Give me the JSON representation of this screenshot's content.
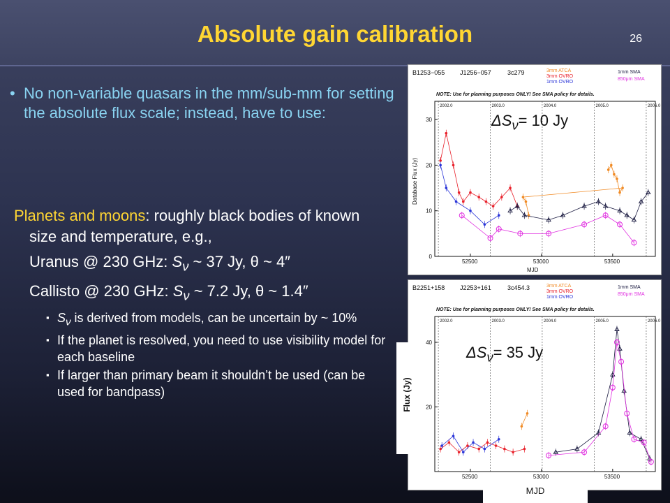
{
  "slide": {
    "title": "Absolute gain calibration",
    "number": "26"
  },
  "bullet": {
    "text": "No non-variable quasars in the mm/sub-mm for setting the absolute flux scale; instead, have to use:"
  },
  "planets": {
    "lead_highlight": "Planets and moons",
    "lead_rest": ": roughly black bodies of known size and temperature, e.g.,",
    "uranus_prefix": "Uranus @ 230 GHz: ",
    "uranus_suffix": " ~ 37 Jy, θ ~ 4″",
    "callisto_prefix": "Callisto @ 230 GHz: ",
    "callisto_suffix": " ~ 7.2 Jy, θ ~ 1.4″",
    "sub_items": [
      " is derived from models, can be uncertain by ~ 10%",
      "If the planet is resolved, you need to use visibility model for each baseline",
      "If larger than primary beam it shouldn’t be used (can be used for bandpass)"
    ]
  },
  "symbols": {
    "S": "S",
    "nu": "ν",
    "delta": "ΔS",
    "bullet": "•",
    "square": "▪"
  },
  "plot_top": {
    "sources": [
      "B1253−055",
      "J1256−057",
      "3c279"
    ],
    "legend_left": [
      "3mm ATCA",
      "3mm OVRO",
      "1mm OVRO"
    ],
    "legend_right": [
      "1mm SMA",
      "850μm SMA"
    ],
    "note": "NOTE: Use for planning purposes ONLY! See SMA policy for details.",
    "ylabel": "Database Flux (Jy)",
    "xlabel": "MJD",
    "years": [
      "2002.0",
      "2003.0",
      "2004.0",
      "2005.0",
      "2006.0"
    ],
    "yticks": [
      "0",
      "10",
      "20",
      "30"
    ],
    "xticks": [
      "52500",
      "53000",
      "53500"
    ],
    "delta_value": "= 10 Jy"
  },
  "plot_bottom": {
    "sources": [
      "B2251+158",
      "J2253+161",
      "3c454.3"
    ],
    "legend_left": [
      "3mm ATCA",
      "3mm OVRO",
      "1mm OVRO"
    ],
    "legend_right": [
      "1mm SMA",
      "850μm SMA"
    ],
    "note": "NOTE: Use for planning purposes ONLY! See SMA policy for details.",
    "ylabel": "Flux (Jy)",
    "xlabel": "MJD",
    "years": [
      "2002.0",
      "2003.0",
      "2004.0",
      "2005.0",
      "2006.0"
    ],
    "yticks": [
      "20",
      "40"
    ],
    "xticks": [
      "52500",
      "53000",
      "53500"
    ],
    "delta_value": "= 35 Jy"
  },
  "colors": {
    "title": "#ffd633",
    "bullet_text": "#8ad4f2",
    "atca": "#f08a24",
    "ovro3": "#e8202a",
    "ovro1": "#2a35d8",
    "sma1": "#1a1a40",
    "sma850": "#e030e0"
  },
  "chart_data": [
    {
      "type": "scatter",
      "title": "B1253−055 J1256−057 3c279",
      "xlabel": "MJD",
      "ylabel": "Database Flux (Jy)",
      "xlim": [
        52250,
        53800
      ],
      "ylim": [
        0,
        34
      ],
      "series": [
        {
          "name": "3mm ATCA",
          "x": [
            53470,
            53490,
            53510,
            53530,
            53550,
            53570,
            52870,
            52890,
            52910
          ],
          "y": [
            19,
            20,
            18,
            17,
            14,
            15,
            13,
            12,
            9
          ]
        },
        {
          "name": "3mm OVRO",
          "x": [
            52290,
            52330,
            52380,
            52420,
            52450,
            52500,
            52560,
            52610,
            52660,
            52720,
            52780,
            52830
          ],
          "y": [
            21,
            27,
            20,
            14,
            12,
            14,
            13,
            12,
            11,
            13,
            15,
            11
          ]
        },
        {
          "name": "1mm OVRO",
          "x": [
            52290,
            52330,
            52400,
            52500,
            52600,
            52700
          ],
          "y": [
            20,
            15,
            12,
            10,
            7,
            9
          ]
        },
        {
          "name": "1mm SMA",
          "x": [
            52780,
            52830,
            52880,
            53050,
            53150,
            53300,
            53400,
            53450,
            53550,
            53600,
            53650,
            53700,
            53750
          ],
          "y": [
            10,
            11,
            9,
            8,
            9,
            11,
            12,
            11,
            10,
            9,
            8,
            12,
            14
          ]
        },
        {
          "name": "850μm SMA",
          "x": [
            52440,
            52640,
            52700,
            52850,
            53050,
            53300,
            53450,
            53550,
            53650
          ],
          "y": [
            9,
            4,
            6,
            5,
            5,
            7,
            9,
            7,
            3
          ]
        }
      ]
    },
    {
      "type": "scatter",
      "title": "B2251+158 J2253+161 3c454.3",
      "xlabel": "MJD",
      "ylabel": "Flux (Jy)",
      "xlim": [
        52250,
        53800
      ],
      "ylim": [
        0,
        48
      ],
      "series": [
        {
          "name": "3mm ATCA",
          "x": [
            52860,
            52900
          ],
          "y": [
            14,
            18
          ]
        },
        {
          "name": "3mm OVRO",
          "x": [
            52290,
            52350,
            52420,
            52480,
            52560,
            52620,
            52680,
            52740,
            52800,
            52880
          ],
          "y": [
            7,
            9,
            6,
            8,
            7,
            9,
            8,
            7,
            6,
            7
          ]
        },
        {
          "name": "1mm OVRO",
          "x": [
            52300,
            52380,
            52450,
            52520,
            52600,
            52700
          ],
          "y": [
            8,
            11,
            6,
            9,
            7,
            10
          ]
        },
        {
          "name": "1mm SMA",
          "x": [
            53100,
            53250,
            53400,
            53500,
            53530,
            53550,
            53580,
            53620,
            53700,
            53760
          ],
          "y": [
            6,
            7,
            12,
            30,
            44,
            38,
            25,
            12,
            10,
            4
          ]
        },
        {
          "name": "850μm SMA",
          "x": [
            53050,
            53300,
            53450,
            53500,
            53530,
            53560,
            53600,
            53650,
            53720,
            53770
          ],
          "y": [
            5,
            6,
            14,
            26,
            40,
            34,
            18,
            10,
            9,
            3
          ]
        }
      ]
    }
  ]
}
